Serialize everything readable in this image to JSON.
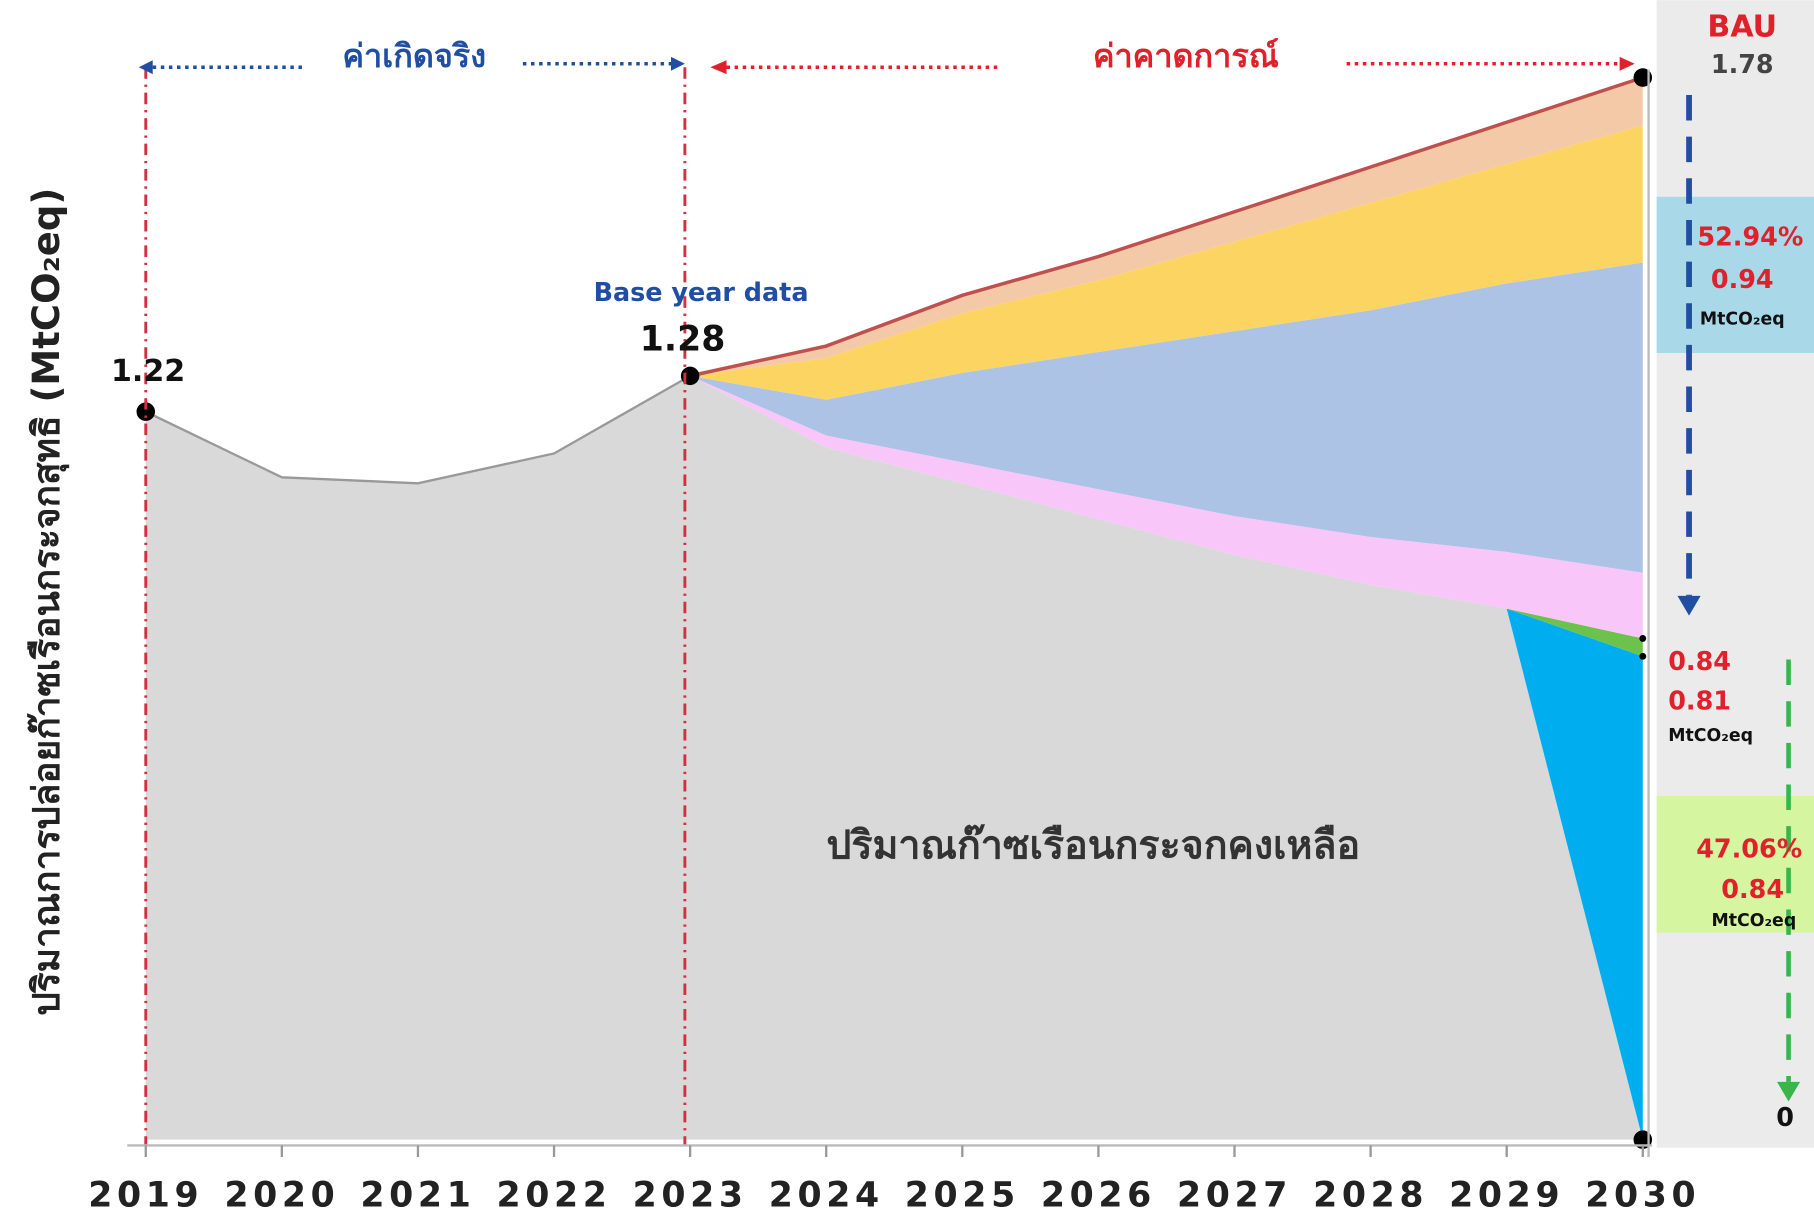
{
  "chart_data": {
    "type": "stacked_area",
    "y_label": "ปริมาณการปล่อยก๊าซเรือนกระจกสุทธิ (MtCO₂eq)",
    "categories": [
      "2019",
      "2020",
      "2021",
      "2022",
      "2023",
      "2024",
      "2025",
      "2026",
      "2027",
      "2028",
      "2029",
      "2030"
    ],
    "ylim": [
      0,
      1.9
    ],
    "series": [
      {
        "name": "ปริมาณก๊าซเรือนกระจกคงเหลือ",
        "color": "#d9d9d9",
        "values": [
          1.22,
          1.11,
          1.1,
          1.15,
          1.28,
          1.16,
          1.1,
          1.04,
          0.98,
          0.93,
          0.89,
          0
        ]
      },
      {
        "color": "#00aeef",
        "values": [
          null,
          null,
          null,
          null,
          null,
          null,
          null,
          null,
          null,
          null,
          0,
          0.81
        ]
      },
      {
        "color": "#6cc24a",
        "values": [
          null,
          null,
          null,
          null,
          null,
          null,
          null,
          null,
          null,
          null,
          0,
          0.03
        ]
      },
      {
        "color": "#f9c6f9",
        "values": [
          null,
          null,
          null,
          null,
          0,
          0.02,
          0.035,
          0.05,
          0.065,
          0.08,
          0.095,
          0.11
        ]
      },
      {
        "color": "#adc3e6",
        "values": [
          null,
          null,
          null,
          null,
          0,
          0.06,
          0.15,
          0.23,
          0.31,
          0.38,
          0.45,
          0.52
        ]
      },
      {
        "color": "#fcd462",
        "values": [
          null,
          null,
          null,
          null,
          0,
          0.07,
          0.1,
          0.12,
          0.15,
          0.18,
          0.2,
          0.23
        ]
      },
      {
        "color": "#f4c9a8",
        "values": [
          null,
          null,
          null,
          null,
          0,
          0.02,
          0.03,
          0.04,
          0.05,
          0.06,
          0.07,
          0.08
        ]
      }
    ],
    "annotations": {
      "actual": "ค่าเกิดจริง",
      "forecast": "ค่าคาดการณ์",
      "base_year": "Base year data",
      "base_value": "1.28",
      "start_value": "1.22",
      "bau": "BAU",
      "bau_value": "1.78",
      "reduction_pct": "52.94%",
      "reduction_value": "0.94",
      "unit": "MtCO₂eq",
      "target_a": "0.84",
      "target_b": "0.81",
      "remaining_pct": "47.06%",
      "remaining_value": "0.84",
      "zero": "0"
    }
  }
}
